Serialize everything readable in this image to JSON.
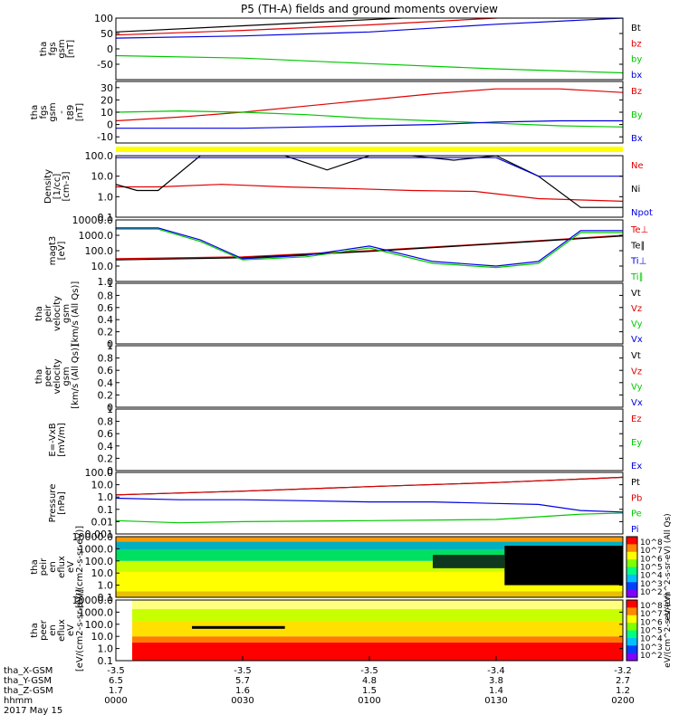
{
  "title": "P5 (TH-A) fields and ground moments overview",
  "chart_data": [
    {
      "type": "line",
      "ylabel": [
        "tha",
        "fgs",
        "gsm",
        "[nT]"
      ],
      "ylim": [
        -100,
        100
      ],
      "yticks": [
        -50,
        0,
        50,
        100
      ],
      "legend": [
        "Bt",
        "bz",
        "by",
        "bx"
      ],
      "series": [
        {
          "name": "Bt",
          "color": "#000000",
          "x": [
            0,
            30,
            60,
            90,
            120
          ],
          "values": [
            55,
            75,
            95,
            115,
            135
          ]
        },
        {
          "name": "bz",
          "color": "#e00000",
          "x": [
            0,
            30,
            60,
            90,
            120
          ],
          "values": [
            45,
            60,
            78,
            100,
            125
          ]
        },
        {
          "name": "by",
          "color": "#00c800",
          "x": [
            0,
            30,
            60,
            90,
            120
          ],
          "values": [
            -22,
            -30,
            -48,
            -65,
            -78
          ]
        },
        {
          "name": "bx",
          "color": "#0000e0",
          "x": [
            0,
            30,
            60,
            90,
            120
          ],
          "values": [
            35,
            42,
            55,
            80,
            100
          ]
        }
      ]
    },
    {
      "type": "line",
      "ylabel": [
        "tha",
        "fgs",
        "gsm",
        "-",
        "t89",
        "[nT]"
      ],
      "ylim": [
        -15,
        35
      ],
      "yticks": [
        -10,
        0,
        10,
        20,
        30
      ],
      "legend": [
        "Bz",
        "By",
        "Bx"
      ],
      "series": [
        {
          "name": "Bz",
          "color": "#e00000",
          "x": [
            0,
            15,
            30,
            45,
            60,
            75,
            90,
            105,
            120
          ],
          "values": [
            3,
            6,
            10,
            15,
            20,
            25,
            29,
            29,
            26
          ]
        },
        {
          "name": "By",
          "color": "#00c800",
          "x": [
            0,
            15,
            30,
            45,
            60,
            75,
            90,
            105,
            120
          ],
          "values": [
            10,
            11,
            10,
            8,
            5,
            3,
            1,
            -1,
            -2
          ]
        },
        {
          "name": "Bx",
          "color": "#0000e0",
          "x": [
            0,
            15,
            30,
            45,
            60,
            75,
            90,
            105,
            120
          ],
          "values": [
            -3,
            -3,
            -3,
            -2,
            -1,
            0,
            2,
            3,
            3
          ]
        }
      ]
    },
    {
      "type": "line",
      "ylabel": [
        "Density",
        "[1/cc]",
        "[cm-3]"
      ],
      "ylog": true,
      "ylim": [
        0.1,
        100
      ],
      "yticks": [
        0.1,
        1.0,
        10.0,
        100.0
      ],
      "legend": [
        "Ne",
        "Ni",
        "Npot"
      ],
      "series": [
        {
          "name": "Ne",
          "color": "#e00000",
          "x": [
            0,
            10,
            25,
            40,
            55,
            70,
            85,
            100,
            120
          ],
          "values": [
            3,
            3,
            4,
            3,
            2.5,
            2,
            1.8,
            0.8,
            0.6
          ]
        },
        {
          "name": "Ni",
          "color": "#000000",
          "x": [
            0,
            5,
            10,
            20,
            30,
            40,
            50,
            60,
            70,
            80,
            90,
            100,
            110,
            120
          ],
          "values": [
            4,
            2,
            2,
            100,
            100,
            100,
            20,
            100,
            100,
            60,
            100,
            10,
            0.3,
            0.3
          ]
        },
        {
          "name": "Npot",
          "color": "#0000e0",
          "x": [
            0,
            30,
            60,
            75,
            90,
            100,
            120
          ],
          "values": [
            80,
            80,
            80,
            80,
            80,
            10,
            10
          ]
        }
      ]
    },
    {
      "type": "line",
      "ylabel": [
        "magt3",
        "[eV]"
      ],
      "ylog": true,
      "ylim": [
        1,
        10000
      ],
      "yticks": [
        1,
        10,
        100,
        1000,
        10000
      ],
      "legend": [
        "Te⊥",
        "Te∥",
        "Ti⊥",
        "Ti∥"
      ],
      "series": [
        {
          "name": "Te⊥",
          "color": "#e00000",
          "x": [
            0,
            30,
            60,
            90,
            120
          ],
          "values": [
            30,
            40,
            100,
            300,
            1000
          ]
        },
        {
          "name": "Te∥",
          "color": "#000000",
          "x": [
            0,
            30,
            60,
            90,
            120
          ],
          "values": [
            25,
            35,
            90,
            280,
            900
          ]
        },
        {
          "name": "Ti⊥",
          "color": "#0000e0",
          "x": [
            0,
            10,
            20,
            30,
            45,
            60,
            75,
            90,
            100,
            110,
            120
          ],
          "values": [
            3000,
            3000,
            500,
            30,
            50,
            200,
            20,
            10,
            20,
            2000,
            2000
          ]
        },
        {
          "name": "Ti∥",
          "color": "#00c800",
          "x": [
            0,
            10,
            20,
            30,
            45,
            60,
            75,
            90,
            100,
            110,
            120
          ],
          "values": [
            2500,
            2500,
            400,
            25,
            40,
            150,
            15,
            8,
            15,
            1500,
            1500
          ]
        }
      ]
    },
    {
      "type": "line",
      "ylabel": [
        "tha",
        "peir",
        "velocity",
        "gsm",
        "[km/s (All Qs)]"
      ],
      "ylim": [
        0,
        1
      ],
      "yticks": [
        0.0,
        0.2,
        0.4,
        0.6,
        0.8,
        1.0
      ],
      "legend": [
        "Vt",
        "Vz",
        "Vy",
        "Vx"
      ],
      "series": []
    },
    {
      "type": "line",
      "ylabel": [
        "tha",
        "peer",
        "velocity",
        "gsm",
        "[km/s (All Qs)]"
      ],
      "ylim": [
        0,
        1
      ],
      "yticks": [
        0.0,
        0.2,
        0.4,
        0.6,
        0.8,
        1.0
      ],
      "legend": [
        "Vt",
        "Vz",
        "Vy",
        "Vx"
      ],
      "series": []
    },
    {
      "type": "line",
      "ylabel": [
        "E=-VxB",
        "[mV/m]"
      ],
      "ylim": [
        0,
        1
      ],
      "yticks": [
        0.0,
        0.2,
        0.4,
        0.6,
        0.8,
        1.0
      ],
      "legend": [
        "Ez",
        "Ey",
        "Ex"
      ],
      "series": []
    },
    {
      "type": "line",
      "ylabel": [
        "Pressure",
        "[nPa]"
      ],
      "ylog": true,
      "ylim": [
        0.001,
        100
      ],
      "yticks": [
        0.001,
        0.01,
        0.1,
        1.0,
        10.0,
        100.0
      ],
      "legend": [
        "Pt",
        "Pb",
        "Pe",
        "Pi"
      ],
      "series": [
        {
          "name": "Pt",
          "color": "#000000",
          "x": [
            0,
            30,
            60,
            90,
            120
          ],
          "values": [
            1.5,
            3,
            7,
            15,
            40
          ]
        },
        {
          "name": "Pb",
          "color": "#e00000",
          "x": [
            0,
            30,
            60,
            90,
            120
          ],
          "values": [
            1.5,
            3,
            7,
            15,
            40
          ]
        },
        {
          "name": "Pe",
          "color": "#00c800",
          "x": [
            0,
            15,
            30,
            60,
            90,
            110,
            120
          ],
          "values": [
            0.012,
            0.008,
            0.01,
            0.012,
            0.015,
            0.04,
            0.05
          ]
        },
        {
          "name": "Pi",
          "color": "#0000e0",
          "x": [
            0,
            15,
            30,
            45,
            60,
            75,
            90,
            100,
            110,
            120
          ],
          "values": [
            0.8,
            0.6,
            0.6,
            0.5,
            0.4,
            0.4,
            0.3,
            0.25,
            0.08,
            0.06
          ]
        }
      ]
    },
    {
      "type": "heatmap",
      "ylabel": [
        "tha",
        "peir",
        "en",
        "eflux",
        "eV",
        "[eV/(cm2-s-sr-eV)]"
      ],
      "ylog": true,
      "ylim": [
        0.1,
        10000
      ],
      "yticks": [
        0.1,
        1.0,
        10.0,
        100.0,
        1000.0,
        10000.0
      ],
      "colorbar_label": "eV/(cm^2-s-sr-eV) (All Qs)",
      "colorbar_ticks": [
        "10^8",
        "10^7",
        "10^6",
        "10^5",
        "10^4",
        "10^3",
        "10^2"
      ]
    },
    {
      "type": "heatmap",
      "ylabel": [
        "tha",
        "peer",
        "en",
        "eflux",
        "eV",
        "[eV/(cm2-s-sr-eV)]"
      ],
      "ylog": true,
      "ylim": [
        0.1,
        10000
      ],
      "yticks": [
        0.1,
        1.0,
        10.0,
        100.0,
        1000.0,
        10000.0
      ],
      "colorbar_label": "eV/(cm^2-s-sr-eV)",
      "colorbar_ticks": [
        "10^8",
        "10^7",
        "10^6",
        "10^5",
        "10^4",
        "10^3",
        "10^2"
      ]
    }
  ],
  "x_axis": {
    "xlim": [
      0,
      120
    ],
    "ticks": [
      {
        "x": 0,
        "labels": [
          "-3.5",
          "6.5",
          "1.7",
          "0000"
        ]
      },
      {
        "x": 30,
        "labels": [
          "-3.5",
          "5.7",
          "1.6",
          "0030"
        ]
      },
      {
        "x": 60,
        "labels": [
          "-3.5",
          "4.8",
          "1.5",
          "0100"
        ]
      },
      {
        "x": 90,
        "labels": [
          "-3.4",
          "3.8",
          "1.4",
          "0130"
        ]
      },
      {
        "x": 120,
        "labels": [
          "-3.2",
          "2.7",
          "1.2",
          "0200"
        ]
      }
    ],
    "row_labels": [
      "tha_X-GSM",
      "tha_Y-GSM",
      "tha_Z-GSM",
      "hhmm"
    ],
    "date": "2017 May 15"
  }
}
